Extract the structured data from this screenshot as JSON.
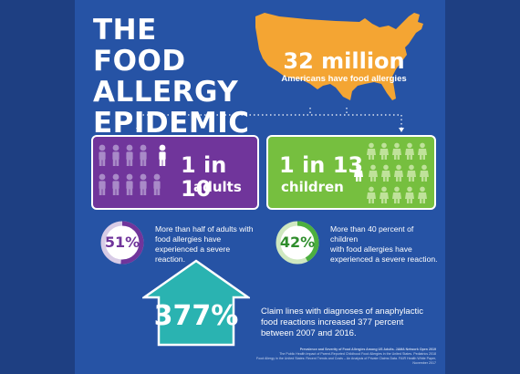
{
  "title": [
    "THE FOOD",
    "ALLERGY",
    "EPIDEMIC"
  ],
  "headline": {
    "big": "32 million",
    "small": "Americans have food allergies"
  },
  "adults": {
    "stat": "1 in 10",
    "label": "adults",
    "color": "#70359b",
    "ring_value": "51%",
    "ring_fraction": 0.51,
    "ring_color": "#70359b",
    "description": [
      "More than half of adults with",
      "food allergies have",
      "experienced a severe reaction."
    ]
  },
  "children": {
    "stat": "1 in 13",
    "label": "children",
    "color": "#76bf3f",
    "ring_value": "42%",
    "ring_fraction": 0.42,
    "ring_color": "#4caf3f",
    "description": [
      "More than 40 percent of children",
      "with food allergies have",
      "experienced a severe reaction."
    ]
  },
  "increase": {
    "value": "377%",
    "description": [
      "Claim lines with diagnoses of anaphylactic",
      "food reactions increased 377 percent",
      "between 2007 and 2016."
    ]
  },
  "sources": [
    "Prevalence and Severity of Food Allergies Among US Adults. JAMA Network Open 2019",
    "The Public Health Impact of Parent-Reported Childhood Food Allergies in the United States. Pediatrics 2018",
    "Food Allergy in the United States: Recent Trends and Costs – An Analysis of Private Claims Data. FAIR Health White Paper, November 2017"
  ],
  "colors": {
    "background": "#1e3f82",
    "panel": "#2653a5",
    "map": "#f4a533",
    "teal": "#2ab3b1"
  }
}
